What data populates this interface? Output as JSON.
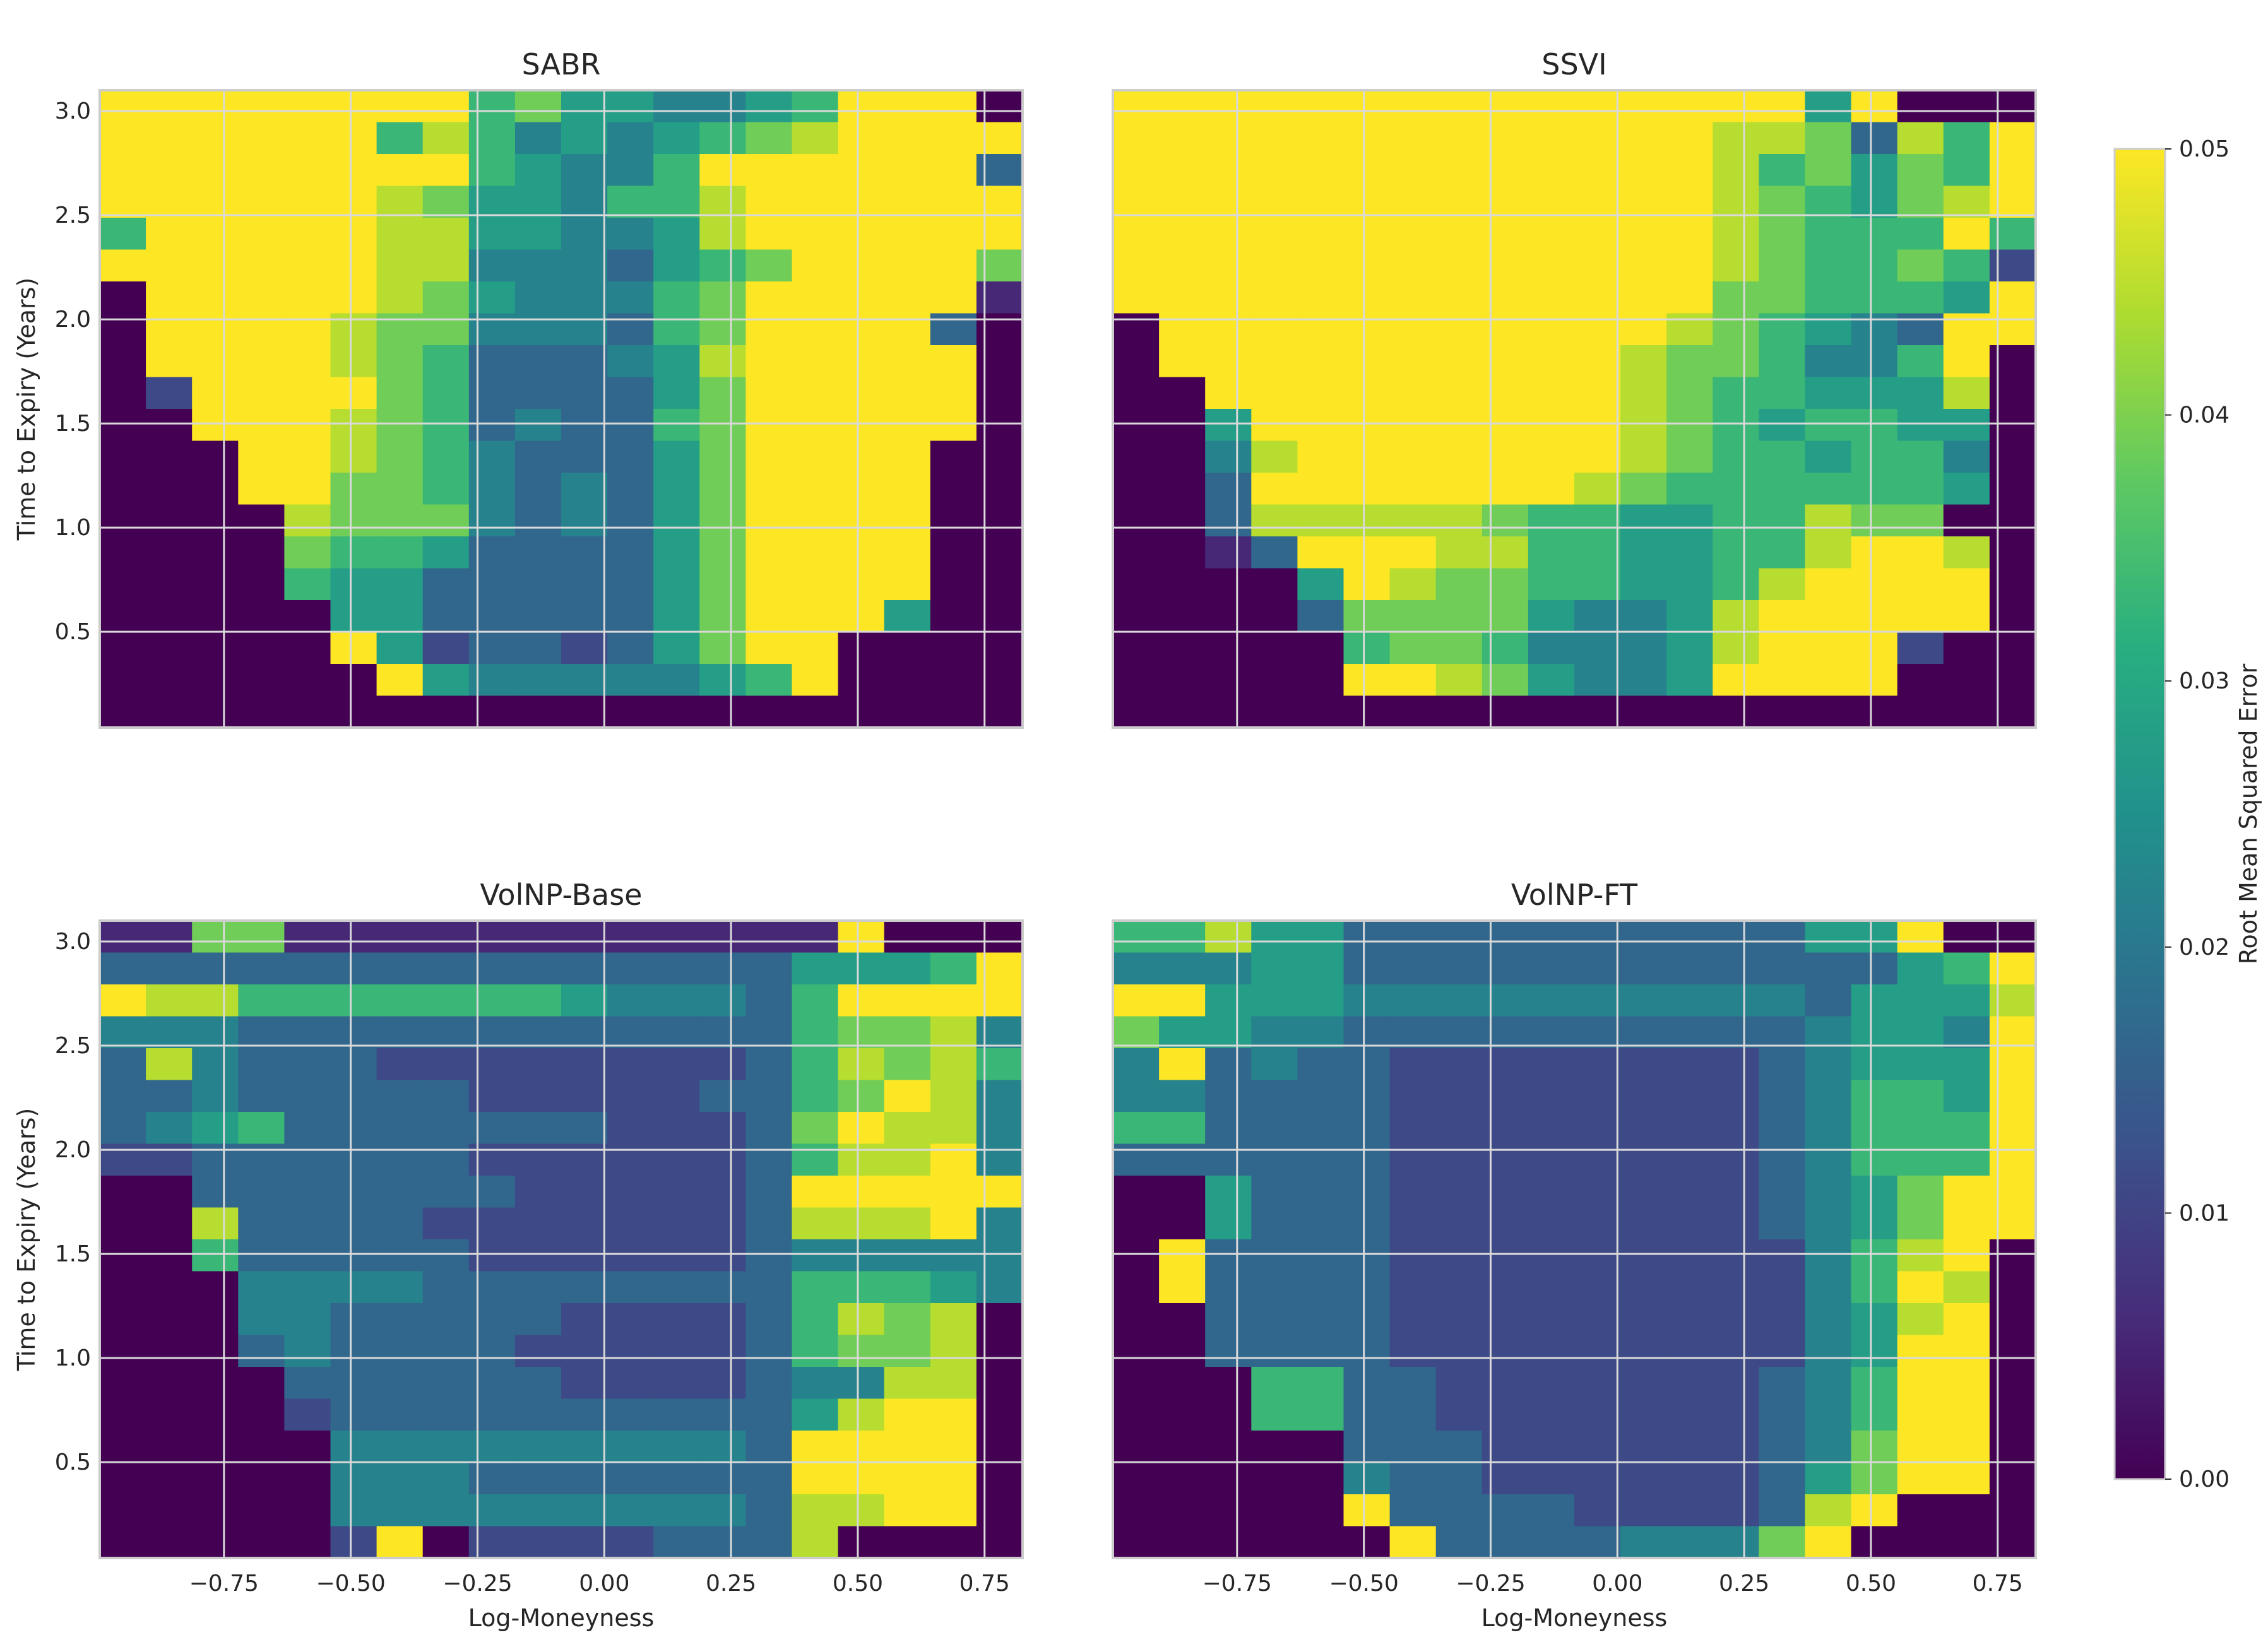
{
  "chart_data": {
    "type": "heatmap",
    "x_label": "Log-Moneyness",
    "y_label": "Time to Expiry (Years)",
    "x_ticks": [
      -0.75,
      -0.5,
      -0.25,
      0.0,
      0.25,
      0.5,
      0.75
    ],
    "x_tick_labels": [
      "−0.75",
      "−0.50",
      "−0.25",
      "0.00",
      "0.25",
      "0.50",
      "0.75"
    ],
    "y_ticks": [
      0.5,
      1.0,
      1.5,
      2.0,
      2.5,
      3.0
    ],
    "y_tick_labels": [
      "0.5",
      "1.0",
      "1.5",
      "2.0",
      "2.5",
      "3.0"
    ],
    "xlim": [
      -0.995,
      0.825
    ],
    "ylim": [
      0.04,
      3.1
    ],
    "colorbar": {
      "label": "Root Mean Squared Error",
      "min": 0.0,
      "max": 0.05,
      "ticks": [
        0.0,
        0.01,
        0.02,
        0.03,
        0.04,
        0.05
      ],
      "tick_labels": [
        "0.00",
        "0.01",
        "0.02",
        "0.03",
        "0.04",
        "0.05"
      ],
      "colormap": "viridis"
    },
    "grid": true,
    "encoding": "rows ordered top to bottom (high expiry to low expiry), 20 rows x 20 cols; digit d = RMSE of d/9*0.05 (clipped at 0.05); 0 = no data / lowest",
    "panels": [
      {
        "title": "SABR",
        "rows": [
          "99999999675544569990",
          "99999968645456789999",
          "99999999654469999993",
          "99999987554668999999",
          "69999988554458999999",
          "99999988444356799997",
          "09999987544467999991",
          "09999877444367999930",
          "09999876333458999990",
          "02999976333357999990",
          "00999876343367999990",
          "00099876433357999900",
          "00099776434357999900",
          "00008777434357999900",
          "00007665333357999900",
          "00006553333357999900",
          "00000553333357999500",
          "00000952332357990000",
          "00000095444445690000",
          "00000000000000000000"
        ]
      },
      {
        "title": "SSVI",
        "rows": [
          "99999999999999959000",
          "99999999999998873869",
          "99999999999998675769",
          "99999999999998765789",
          "99999999999998766696",
          "99999999999998766762",
          "99999999999997766659",
          "09999999999987654399",
          "09999999999877644690",
          "00999999999876655580",
          "00599999999876566550",
          "00489999999876656640",
          "00399999998766666650",
          "00388888766556687700",
          "00139998866556689980",
          "00005987766556899990",
          "00003777754458999990",
          "00000677644458999200",
          "00000998754459999000",
          "00000000000000000000"
        ]
      },
      {
        "title": "VolNP-Base",
        "rows": [
          "11771111111111119000",
          "33333333333333355569",
          "98866666665444369999",
          "44433333333333367784",
          "38433322222222368786",
          "33433333222223367984",
          "34563333333222379884",
          "22333333222222368894",
          "00333333322222399999",
          "00833332222222388894",
          "00633333222222344444",
          "00044443333333366654",
          "00044333332222368780",
          "00034333322222367780",
          "00003333332222344880",
          "00002333333333358990",
          "00000444444444399990",
          "00000444333333399990",
          "00000444444444388990",
          "00000290222233380000"
        ]
      },
      {
        "title": "VolNP-FT",
        "rows": [
          "66855333333333355900",
          "44455333333333333569",
          "99555444444444435558",
          "75544333333333345549",
          "49343322222222345559",
          "44333322222222346659",
          "66333322222222346669",
          "33333322222222346669",
          "00533322222222345799",
          "00533322222222345799",
          "09333322222222246890",
          "09333322222222246980",
          "00333322222222245890",
          "00333322222222245990",
          "00066332222222346990",
          "00066332222222346990",
          "00000333222222347990",
          "00000433222222357990",
          "00000933332222389000",
          "00000093333444790000"
        ]
      }
    ]
  }
}
